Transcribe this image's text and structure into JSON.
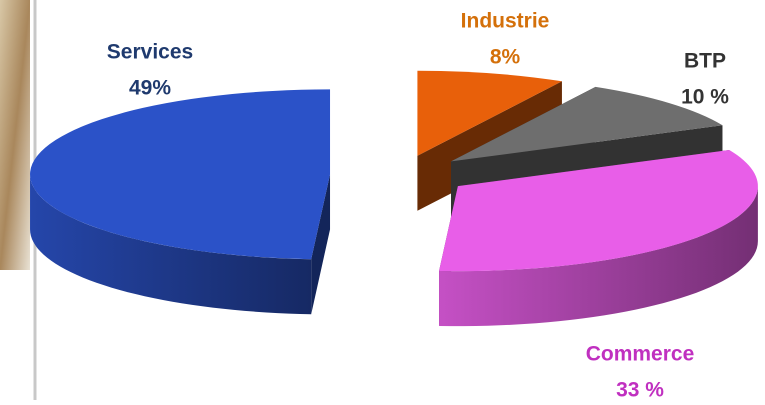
{
  "chart_data": {
    "type": "pie",
    "categories": [
      "Industrie",
      "BTP",
      "Commerce",
      "Services"
    ],
    "values": [
      8,
      10,
      33,
      49
    ],
    "value_labels": [
      "8%",
      "10 %",
      "33 %",
      "49%"
    ],
    "colors": [
      "#e8600a",
      "#6e6e6e",
      "#e85ee8",
      "#2b52c8"
    ]
  }
}
